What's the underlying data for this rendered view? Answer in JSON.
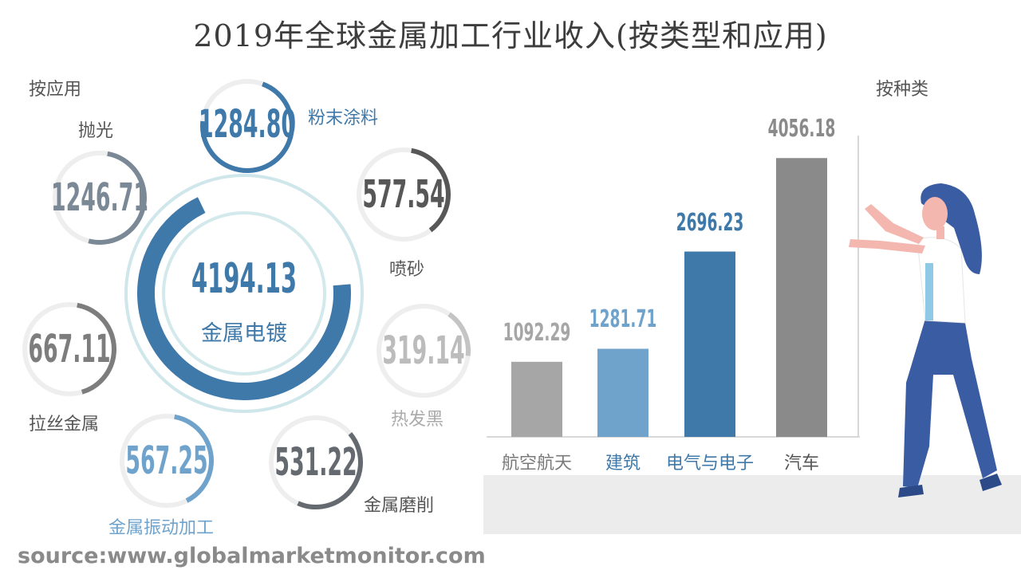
{
  "title": "2019年全球金属加工行业收入(按类型和应用)",
  "left_heading": "按应用",
  "right_heading": "按种类",
  "source": "source:www.globalmarketmonitor.com",
  "colors": {
    "blue_dark": "#3f79aa",
    "blue_light": "#6fa3cc",
    "grey_dark": "#5d5d5d",
    "grey_mid": "#808890",
    "grey_light": "#b8b8b8",
    "ring_track": "#eeeeee"
  },
  "chart_data": [
    {
      "type": "pie",
      "title": "按应用",
      "segments": [
        {
          "name": "金属电镀",
          "value": 4194.13,
          "color": "#3f79aa"
        },
        {
          "name": "粉末涂料",
          "value": 1284.8,
          "color": "#3f79aa"
        },
        {
          "name": "抛光",
          "value": 1246.71,
          "color": "#7b8896"
        },
        {
          "name": "喷砂",
          "value": 577.54,
          "color": "#575757"
        },
        {
          "name": "热发黑",
          "value": 319.14,
          "color": "#bcbcbc"
        },
        {
          "name": "金属磨削",
          "value": 531.22,
          "color": "#656a70"
        },
        {
          "name": "金属振动加工",
          "value": 567.25,
          "color": "#6fa3cc"
        },
        {
          "name": "拉丝金属",
          "value": 667.11,
          "color": "#7d7d7d"
        }
      ]
    },
    {
      "type": "bar",
      "title": "按种类",
      "categories": [
        "航空航天",
        "建筑",
        "电气与电子",
        "汽车"
      ],
      "values": [
        1092.29,
        1281.71,
        2696.23,
        4056.18
      ],
      "value_labels": [
        "1092.29",
        "1281.71",
        "2696.23",
        "4056.18"
      ],
      "colors": [
        "#a6a6a6",
        "#6fa3cc",
        "#3f79aa",
        "#8a8a8a"
      ],
      "label_colors": [
        "#a6a6a6",
        "#6fa3cc",
        "#3f79aa",
        "#8a8a8a"
      ],
      "category_colors": [
        "#7a7a7a",
        "#3f79aa",
        "#3f79aa",
        "#555555"
      ],
      "ylim": [
        0,
        4500
      ]
    }
  ],
  "bubbles": {
    "center": {
      "value": "4194.13",
      "label": "金属电镀"
    },
    "powder": {
      "value": "1284.80",
      "label": "粉末涂料"
    },
    "polish": {
      "value": "1246.71",
      "label": "抛光"
    },
    "blast": {
      "value": "577.54",
      "label": "喷砂"
    },
    "blacken": {
      "value": "319.14",
      "label": "热发黑"
    },
    "grind": {
      "value": "531.22",
      "label": "金属磨削"
    },
    "vibration": {
      "value": "567.25",
      "label": "金属振动加工"
    },
    "brushed": {
      "value": "667.11",
      "label": "拉丝金属"
    }
  }
}
